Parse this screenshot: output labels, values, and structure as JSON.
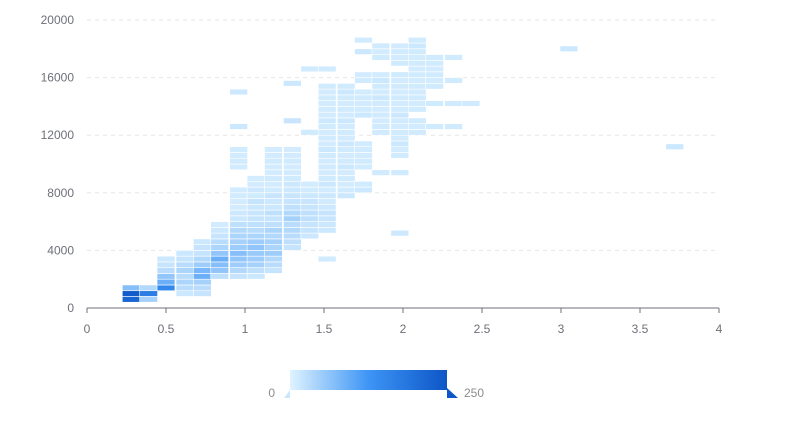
{
  "chart_data": {
    "type": "heatmap",
    "title": "",
    "xlabel": "",
    "ylabel": "",
    "xlim": [
      0,
      4
    ],
    "ylim": [
      0,
      20000
    ],
    "x_ticks": [
      "0",
      "0.5",
      "1",
      "1.5",
      "2",
      "2.5",
      "3",
      "3.5",
      "4"
    ],
    "y_ticks": [
      "0",
      "4000",
      "8000",
      "12000",
      "16000",
      "20000"
    ],
    "grid": "horizontal dashed",
    "bin_size": {
      "x": 0.1133,
      "y": 400
    },
    "colors": {
      "low": "#e0f3ff",
      "mid": "#3d95f5",
      "high": "#0d56c7",
      "axis": "#6e7079",
      "grid": "#e6e6e6"
    },
    "visual_map": {
      "min_label": "0",
      "max_label": "250",
      "min": 0,
      "max": 250,
      "position": "bottom-center"
    },
    "cells": [
      [
        0.28,
        1000,
        240
      ],
      [
        0.39,
        1000,
        170
      ],
      [
        0.28,
        600,
        220
      ],
      [
        0.39,
        600,
        45
      ],
      [
        0.28,
        1400,
        70
      ],
      [
        0.39,
        1400,
        35
      ],
      [
        0.5,
        1400,
        150
      ],
      [
        0.5,
        1800,
        90
      ],
      [
        0.5,
        2200,
        60
      ],
      [
        0.5,
        2600,
        30
      ],
      [
        0.5,
        3000,
        20
      ],
      [
        0.5,
        3400,
        15
      ],
      [
        0.62,
        1000,
        15
      ],
      [
        0.62,
        1400,
        30
      ],
      [
        0.62,
        1800,
        40
      ],
      [
        0.62,
        2200,
        30
      ],
      [
        0.62,
        2600,
        40
      ],
      [
        0.62,
        3000,
        30
      ],
      [
        0.62,
        3400,
        20
      ],
      [
        0.62,
        3800,
        15
      ],
      [
        0.73,
        1000,
        20
      ],
      [
        0.73,
        1400,
        30
      ],
      [
        0.73,
        1800,
        45
      ],
      [
        0.73,
        2200,
        90
      ],
      [
        0.73,
        2600,
        80
      ],
      [
        0.73,
        3000,
        50
      ],
      [
        0.73,
        3400,
        35
      ],
      [
        0.73,
        3800,
        20
      ],
      [
        0.73,
        4200,
        20
      ],
      [
        0.73,
        4600,
        15
      ],
      [
        0.84,
        2200,
        25
      ],
      [
        0.84,
        2600,
        60
      ],
      [
        0.84,
        3000,
        70
      ],
      [
        0.84,
        3400,
        90
      ],
      [
        0.84,
        3800,
        60
      ],
      [
        0.84,
        4200,
        40
      ],
      [
        0.84,
        4600,
        30
      ],
      [
        0.84,
        5000,
        20
      ],
      [
        0.84,
        5400,
        15
      ],
      [
        0.84,
        5800,
        10
      ],
      [
        0.96,
        2200,
        20
      ],
      [
        0.96,
        2600,
        35
      ],
      [
        0.96,
        3000,
        50
      ],
      [
        0.96,
        3400,
        60
      ],
      [
        0.96,
        3800,
        70
      ],
      [
        0.96,
        4200,
        50
      ],
      [
        0.96,
        4600,
        45
      ],
      [
        0.96,
        5000,
        40
      ],
      [
        0.96,
        5400,
        35
      ],
      [
        0.96,
        5800,
        25
      ],
      [
        0.96,
        6200,
        15
      ],
      [
        0.96,
        6600,
        15
      ],
      [
        0.96,
        7000,
        10
      ],
      [
        0.96,
        7400,
        10
      ],
      [
        0.96,
        7800,
        12
      ],
      [
        0.96,
        8200,
        10
      ],
      [
        0.96,
        9800,
        10
      ],
      [
        0.96,
        10200,
        12
      ],
      [
        0.96,
        10600,
        10
      ],
      [
        0.96,
        11000,
        12
      ],
      [
        0.96,
        12600,
        15
      ],
      [
        0.96,
        15000,
        15
      ],
      [
        1.07,
        2200,
        15
      ],
      [
        1.07,
        2600,
        25
      ],
      [
        1.07,
        3000,
        45
      ],
      [
        1.07,
        3400,
        50
      ],
      [
        1.07,
        3800,
        55
      ],
      [
        1.07,
        4200,
        60
      ],
      [
        1.07,
        4600,
        50
      ],
      [
        1.07,
        5000,
        40
      ],
      [
        1.07,
        5400,
        30
      ],
      [
        1.07,
        5800,
        25
      ],
      [
        1.07,
        6200,
        20
      ],
      [
        1.07,
        6600,
        18
      ],
      [
        1.07,
        7000,
        15
      ],
      [
        1.07,
        7400,
        20
      ],
      [
        1.07,
        7800,
        12
      ],
      [
        1.07,
        8200,
        15
      ],
      [
        1.07,
        8600,
        10
      ],
      [
        1.07,
        9000,
        10
      ],
      [
        1.18,
        2600,
        20
      ],
      [
        1.18,
        3000,
        30
      ],
      [
        1.18,
        3400,
        35
      ],
      [
        1.18,
        3800,
        50
      ],
      [
        1.18,
        4200,
        40
      ],
      [
        1.18,
        4600,
        45
      ],
      [
        1.18,
        5000,
        35
      ],
      [
        1.18,
        5400,
        40
      ],
      [
        1.18,
        5800,
        25
      ],
      [
        1.18,
        6200,
        20
      ],
      [
        1.18,
        6600,
        25
      ],
      [
        1.18,
        7000,
        15
      ],
      [
        1.18,
        7400,
        15
      ],
      [
        1.18,
        7800,
        18
      ],
      [
        1.18,
        8200,
        12
      ],
      [
        1.18,
        8600,
        10
      ],
      [
        1.18,
        9000,
        12
      ],
      [
        1.18,
        9400,
        10
      ],
      [
        1.18,
        9800,
        10
      ],
      [
        1.18,
        10200,
        12
      ],
      [
        1.18,
        10600,
        10
      ],
      [
        1.18,
        11000,
        10
      ],
      [
        1.3,
        4200,
        20
      ],
      [
        1.3,
        4600,
        25
      ],
      [
        1.3,
        5000,
        30
      ],
      [
        1.3,
        5400,
        35
      ],
      [
        1.3,
        5800,
        30
      ],
      [
        1.3,
        6200,
        45
      ],
      [
        1.3,
        6600,
        35
      ],
      [
        1.3,
        7000,
        25
      ],
      [
        1.3,
        7400,
        20
      ],
      [
        1.3,
        7800,
        18
      ],
      [
        1.3,
        8200,
        15
      ],
      [
        1.3,
        8600,
        15
      ],
      [
        1.3,
        9000,
        12
      ],
      [
        1.3,
        9400,
        10
      ],
      [
        1.3,
        9800,
        10
      ],
      [
        1.3,
        10200,
        12
      ],
      [
        1.3,
        10600,
        10
      ],
      [
        1.3,
        11000,
        10
      ],
      [
        1.3,
        13000,
        18
      ],
      [
        1.3,
        15600,
        15
      ],
      [
        1.41,
        5000,
        15
      ],
      [
        1.41,
        5400,
        20
      ],
      [
        1.41,
        5800,
        20
      ],
      [
        1.41,
        6200,
        25
      ],
      [
        1.41,
        6600,
        25
      ],
      [
        1.41,
        7000,
        20
      ],
      [
        1.41,
        7400,
        18
      ],
      [
        1.41,
        7800,
        15
      ],
      [
        1.41,
        8200,
        12
      ],
      [
        1.41,
        8600,
        10
      ],
      [
        1.41,
        12200,
        12
      ],
      [
        1.41,
        16600,
        12
      ],
      [
        1.52,
        5400,
        15
      ],
      [
        1.52,
        5800,
        15
      ],
      [
        1.52,
        6200,
        18
      ],
      [
        1.52,
        6600,
        20
      ],
      [
        1.52,
        7000,
        15
      ],
      [
        1.52,
        7400,
        12
      ],
      [
        1.52,
        7800,
        15
      ],
      [
        1.52,
        8200,
        10
      ],
      [
        1.52,
        8600,
        15
      ],
      [
        1.52,
        9000,
        12
      ],
      [
        1.52,
        9400,
        10
      ],
      [
        1.52,
        9800,
        12
      ],
      [
        1.52,
        10200,
        10
      ],
      [
        1.52,
        10600,
        12
      ],
      [
        1.52,
        11000,
        15
      ],
      [
        1.52,
        11400,
        10
      ],
      [
        1.52,
        11800,
        12
      ],
      [
        1.52,
        12200,
        10
      ],
      [
        1.52,
        12600,
        12
      ],
      [
        1.52,
        13000,
        15
      ],
      [
        1.52,
        13400,
        10
      ],
      [
        1.52,
        13800,
        12
      ],
      [
        1.52,
        14200,
        10
      ],
      [
        1.52,
        14600,
        12
      ],
      [
        1.52,
        15000,
        10
      ],
      [
        1.52,
        15400,
        12
      ],
      [
        1.52,
        16600,
        12
      ],
      [
        1.52,
        3400,
        12
      ],
      [
        1.64,
        7800,
        15
      ],
      [
        1.64,
        8200,
        12
      ],
      [
        1.64,
        8600,
        10
      ],
      [
        1.64,
        9000,
        12
      ],
      [
        1.64,
        9400,
        10
      ],
      [
        1.64,
        9800,
        15
      ],
      [
        1.64,
        10200,
        12
      ],
      [
        1.64,
        10600,
        10
      ],
      [
        1.64,
        11000,
        12
      ],
      [
        1.64,
        11400,
        15
      ],
      [
        1.64,
        11800,
        10
      ],
      [
        1.64,
        12200,
        12
      ],
      [
        1.64,
        12600,
        10
      ],
      [
        1.64,
        13000,
        15
      ],
      [
        1.64,
        13400,
        10
      ],
      [
        1.64,
        13800,
        12
      ],
      [
        1.64,
        14200,
        10
      ],
      [
        1.64,
        14600,
        12
      ],
      [
        1.64,
        15000,
        15
      ],
      [
        1.64,
        15400,
        12
      ],
      [
        1.75,
        8200,
        15
      ],
      [
        1.75,
        8600,
        12
      ],
      [
        1.75,
        9800,
        10
      ],
      [
        1.75,
        10200,
        12
      ],
      [
        1.75,
        10600,
        10
      ],
      [
        1.75,
        11000,
        12
      ],
      [
        1.75,
        11400,
        10
      ],
      [
        1.75,
        13400,
        15
      ],
      [
        1.75,
        13800,
        12
      ],
      [
        1.75,
        14200,
        10
      ],
      [
        1.75,
        14600,
        12
      ],
      [
        1.75,
        15000,
        10
      ],
      [
        1.75,
        15800,
        12
      ],
      [
        1.75,
        16200,
        10
      ],
      [
        1.75,
        17800,
        15
      ],
      [
        1.75,
        18600,
        12
      ],
      [
        1.86,
        12200,
        12
      ],
      [
        1.86,
        12600,
        12
      ],
      [
        1.86,
        13000,
        10
      ],
      [
        1.86,
        13400,
        12
      ],
      [
        1.86,
        13800,
        10
      ],
      [
        1.86,
        14200,
        12
      ],
      [
        1.86,
        14600,
        15
      ],
      [
        1.86,
        15000,
        10
      ],
      [
        1.86,
        15400,
        12
      ],
      [
        1.86,
        15800,
        15
      ],
      [
        1.86,
        16200,
        10
      ],
      [
        1.86,
        17400,
        12
      ],
      [
        1.86,
        17800,
        10
      ],
      [
        1.86,
        18200,
        12
      ],
      [
        1.86,
        9400,
        12
      ],
      [
        1.98,
        10600,
        12
      ],
      [
        1.98,
        11000,
        10
      ],
      [
        1.98,
        11400,
        15
      ],
      [
        1.98,
        11800,
        10
      ],
      [
        1.98,
        12200,
        12
      ],
      [
        1.98,
        12600,
        10
      ],
      [
        1.98,
        13000,
        12
      ],
      [
        1.98,
        13400,
        15
      ],
      [
        1.98,
        13800,
        12
      ],
      [
        1.98,
        14200,
        10
      ],
      [
        1.98,
        14600,
        12
      ],
      [
        1.98,
        15000,
        10
      ],
      [
        1.98,
        15400,
        12
      ],
      [
        1.98,
        15800,
        10
      ],
      [
        1.98,
        16200,
        12
      ],
      [
        1.98,
        17000,
        12
      ],
      [
        1.98,
        17400,
        10
      ],
      [
        1.98,
        17800,
        12
      ],
      [
        1.98,
        18200,
        10
      ],
      [
        1.98,
        9400,
        12
      ],
      [
        1.98,
        5200,
        14
      ],
      [
        2.09,
        12200,
        12
      ],
      [
        2.09,
        12600,
        10
      ],
      [
        2.09,
        13000,
        12
      ],
      [
        2.09,
        13800,
        12
      ],
      [
        2.09,
        14200,
        10
      ],
      [
        2.09,
        14600,
        12
      ],
      [
        2.09,
        15000,
        10
      ],
      [
        2.09,
        15400,
        12
      ],
      [
        2.09,
        15800,
        10
      ],
      [
        2.09,
        16200,
        12
      ],
      [
        2.09,
        16600,
        10
      ],
      [
        2.09,
        17000,
        12
      ],
      [
        2.09,
        17400,
        10
      ],
      [
        2.09,
        17800,
        12
      ],
      [
        2.09,
        18200,
        15
      ],
      [
        2.09,
        18600,
        12
      ],
      [
        2.2,
        12600,
        12
      ],
      [
        2.2,
        14200,
        12
      ],
      [
        2.2,
        15400,
        12
      ],
      [
        2.2,
        15800,
        10
      ],
      [
        2.2,
        16200,
        12
      ],
      [
        2.2,
        16600,
        10
      ],
      [
        2.2,
        17000,
        12
      ],
      [
        2.2,
        17400,
        12
      ],
      [
        2.32,
        12600,
        12
      ],
      [
        2.32,
        14200,
        12
      ],
      [
        2.32,
        15800,
        12
      ],
      [
        2.32,
        17400,
        12
      ],
      [
        2.43,
        14200,
        12
      ],
      [
        3.05,
        18000,
        15
      ],
      [
        3.72,
        11200,
        15
      ]
    ]
  }
}
